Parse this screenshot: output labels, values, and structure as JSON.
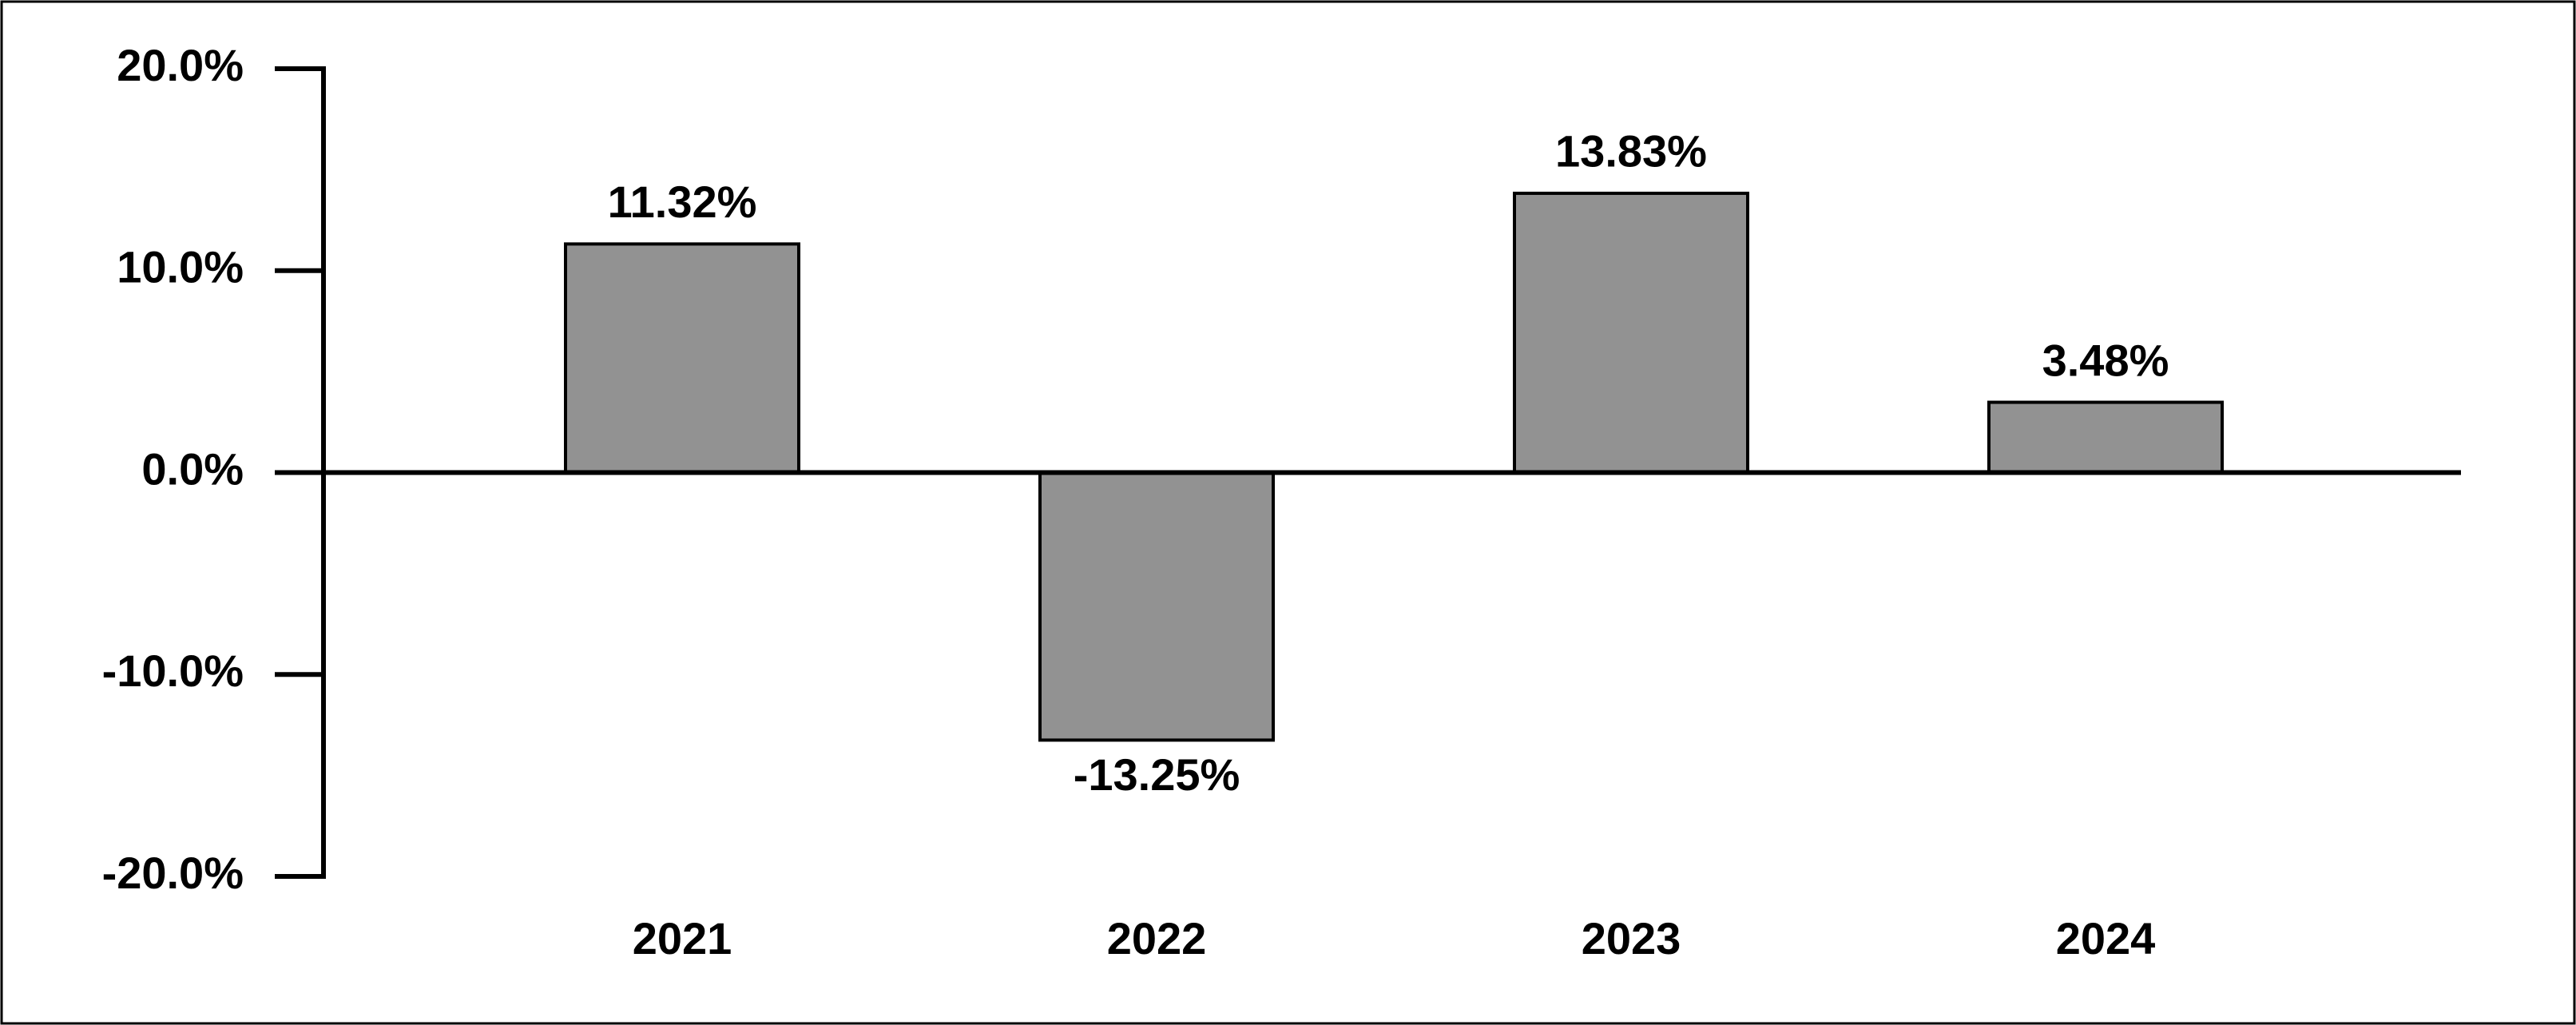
{
  "chart_data": {
    "type": "bar",
    "categories": [
      "2021",
      "2022",
      "2023",
      "2024"
    ],
    "values": [
      11.32,
      -13.25,
      13.83,
      3.48
    ],
    "value_labels": [
      "11.32%",
      "-13.25%",
      "13.83%",
      "3.48%"
    ],
    "color": "#929292",
    "ylim": [
      -20,
      20
    ],
    "yticks": [
      {
        "value": -20,
        "label": "-20.0%"
      },
      {
        "value": -10,
        "label": "-10.0%"
      },
      {
        "value": 0,
        "label": "0.0%"
      },
      {
        "value": 10,
        "label": "10.0%"
      },
      {
        "value": 20,
        "label": "20.0%"
      }
    ],
    "grid": false
  }
}
